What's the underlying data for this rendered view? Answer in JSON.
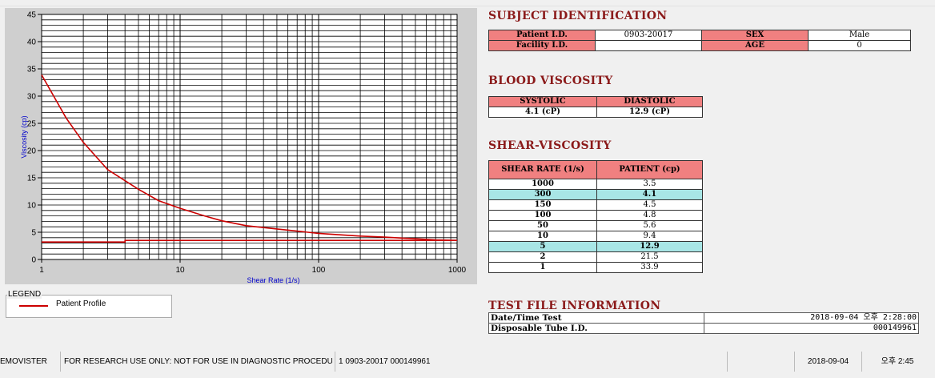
{
  "chart_data": {
    "type": "line",
    "xlabel": "Shear Rate (1/s)",
    "ylabel": "Viscosity (cp)",
    "xscale": "log",
    "xlim": [
      1,
      1000
    ],
    "ylim": [
      0,
      45
    ],
    "x_ticks": [
      "1",
      "10",
      "100",
      "1000"
    ],
    "y_ticks": [
      "0",
      "5",
      "10",
      "15",
      "20",
      "25",
      "30",
      "35",
      "40",
      "45"
    ],
    "grid": true,
    "series": [
      {
        "name": "Patient Profile",
        "color": "#cc0000",
        "x": [
          1,
          1.5,
          2,
          3,
          5,
          7,
          10,
          15,
          20,
          30,
          50,
          70,
          100,
          150,
          200,
          300,
          500,
          700,
          1000
        ],
        "y": [
          33.9,
          26.0,
          21.5,
          16.5,
          12.9,
          10.8,
          9.4,
          8.0,
          7.1,
          6.2,
          5.6,
          5.2,
          4.8,
          4.5,
          4.3,
          4.1,
          3.8,
          3.6,
          3.5
        ]
      },
      {
        "color": "#cc0000",
        "x": [
          1,
          4,
          4,
          1000
        ],
        "y": [
          3.2,
          3.2,
          3.5,
          3.5
        ]
      }
    ]
  },
  "legend": {
    "title": "LEGEND",
    "entry": "Patient Profile"
  },
  "subject": {
    "heading": "SUBJECT IDENTIFICATION",
    "patient_id_label": "Patient I.D.",
    "patient_id": "0903-20017",
    "sex_label": "SEX",
    "sex": "Male",
    "facility_label": "Facility I.D.",
    "facility": "",
    "age_label": "AGE",
    "age": "0"
  },
  "blood": {
    "heading": "BLOOD VISCOSITY",
    "systolic_label": "SYSTOLIC",
    "diastolic_label": "DIASTOLIC",
    "systolic": "4.1 (cP)",
    "diastolic": "12.9 (cP)"
  },
  "shear": {
    "heading": "SHEAR-VISCOSITY",
    "col1": "SHEAR RATE (1/s)",
    "col2": "PATIENT (cp)",
    "rows": [
      {
        "rate": "1000",
        "val": "3.5",
        "hl": false
      },
      {
        "rate": "300",
        "val": "4.1",
        "hl": true
      },
      {
        "rate": "150",
        "val": "4.5",
        "hl": false
      },
      {
        "rate": "100",
        "val": "4.8",
        "hl": false
      },
      {
        "rate": "50",
        "val": "5.6",
        "hl": false
      },
      {
        "rate": "10",
        "val": "9.4",
        "hl": false
      },
      {
        "rate": "5",
        "val": "12.9",
        "hl": true
      },
      {
        "rate": "2",
        "val": "21.5",
        "hl": false
      },
      {
        "rate": "1",
        "val": "33.9",
        "hl": false
      }
    ]
  },
  "testfile": {
    "heading": "TEST FILE INFORMATION",
    "datetime_label": "Date/Time Test",
    "datetime": "2018-09-04  오후 2:28:00",
    "tube_label": "Disposable Tube I.D.",
    "tube": "000149961"
  },
  "status": {
    "app": "EMOVISTER",
    "notice": "FOR RESEARCH USE ONLY: NOT FOR USE IN DIAGNOSTIC PROCEDURES",
    "info": "1  0903-20017  000149961",
    "date": "2018-09-04",
    "time": "오후 2:45"
  }
}
